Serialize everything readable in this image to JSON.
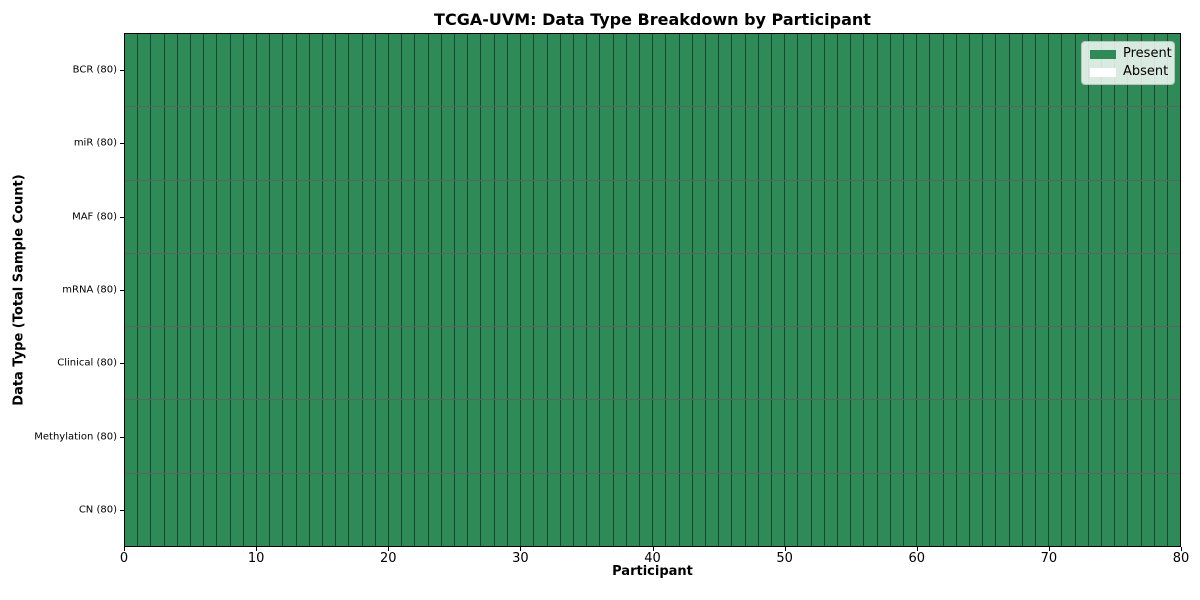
{
  "chart_data": {
    "type": "heatmap",
    "title": "TCGA-UVM: Data Type Breakdown by Participant",
    "xlabel": "Participant",
    "ylabel": "Data Type (Total Sample Count)",
    "x_range": [
      0,
      80
    ],
    "x_ticks": [
      0,
      10,
      20,
      30,
      40,
      50,
      60,
      70,
      80
    ],
    "participants": 80,
    "rows": [
      {
        "label": "BCR (80)",
        "present_count": 80,
        "absent_count": 0
      },
      {
        "label": "miR (80)",
        "present_count": 80,
        "absent_count": 0
      },
      {
        "label": "MAF (80)",
        "present_count": 80,
        "absent_count": 0
      },
      {
        "label": "mRNA (80)",
        "present_count": 80,
        "absent_count": 0
      },
      {
        "label": "Clinical (80)",
        "present_count": 80,
        "absent_count": 0
      },
      {
        "label": "Methylation (80)",
        "present_count": 80,
        "absent_count": 0
      },
      {
        "label": "CN (80)",
        "present_count": 80,
        "absent_count": 0
      }
    ],
    "legend": [
      {
        "label": "Present",
        "color": "#2e8b57"
      },
      {
        "label": "Absent",
        "color": "#ffffff"
      }
    ],
    "legend_position": "upper right",
    "colors": {
      "present": "#2e8b57",
      "absent": "#ffffff",
      "cell_edge": "rgba(0,0,0,0.48)",
      "row_edge": "rgba(0,0,0,0.62)",
      "axes_edge": "#000000"
    },
    "grid": false
  }
}
